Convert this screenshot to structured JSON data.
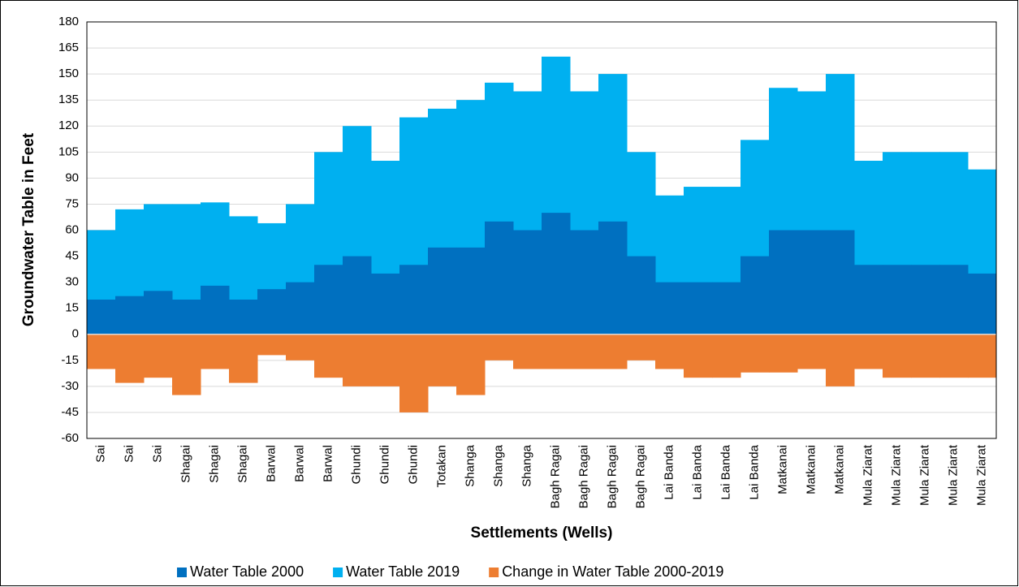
{
  "chart_data": {
    "type": "step-area",
    "x_label": "Settlements (Wells)",
    "y_label": "Groundwater Table in Feet",
    "categories": [
      "Sai",
      "Sai",
      "Sai",
      "Shagai",
      "Shagai",
      "Shagai",
      "Barwal",
      "Barwal",
      "Barwal",
      "Ghundi",
      "Ghundi",
      "Ghundi",
      "Totakan",
      "Shanga",
      "Shanga",
      "Shanga",
      "Bagh Ragai",
      "Bagh Ragai",
      "Bagh Ragai",
      "Bagh Ragai",
      "Lai Banda",
      "Lai Banda",
      "Lai Banda",
      "Lai Banda",
      "Matkanai",
      "Matkanai",
      "Matkanai",
      "Mula Ziarat",
      "Mula Ziarat",
      "Mula Ziarat",
      "Mula Ziarat",
      "Mula Ziarat"
    ],
    "series": [
      {
        "name": "Water Table 2000",
        "color": "#0070c0",
        "values": [
          20,
          22,
          25,
          20,
          28,
          20,
          26,
          30,
          40,
          45,
          35,
          40,
          50,
          50,
          65,
          60,
          70,
          60,
          65,
          45,
          30,
          30,
          30,
          45,
          60,
          60,
          60,
          40,
          40,
          40,
          40,
          35
        ]
      },
      {
        "name": "Water Table 2019",
        "color": "#00b0f0",
        "values": [
          60,
          72,
          75,
          75,
          76,
          68,
          64,
          75,
          105,
          120,
          100,
          125,
          130,
          135,
          145,
          140,
          160,
          140,
          150,
          105,
          80,
          85,
          85,
          112,
          142,
          140,
          150,
          100,
          105,
          105,
          105,
          95
        ]
      },
      {
        "name": "Change in Water Table 2000-2019",
        "color": "#ed7d31",
        "values": [
          -20,
          -28,
          -25,
          -35,
          -20,
          -28,
          -12,
          -15,
          -25,
          -30,
          -30,
          -45,
          -30,
          -35,
          -15,
          -20,
          -20,
          -20,
          -20,
          -15,
          -20,
          -25,
          -25,
          -22,
          -22,
          -20,
          -30,
          -20,
          -25,
          -25,
          -25,
          -25
        ]
      }
    ],
    "ylim": [
      -60,
      180
    ],
    "yticks": [
      -60,
      -45,
      -30,
      -15,
      0,
      15,
      30,
      45,
      60,
      75,
      90,
      105,
      120,
      135,
      150,
      165,
      180
    ],
    "grid": true,
    "legend": "bottom"
  }
}
